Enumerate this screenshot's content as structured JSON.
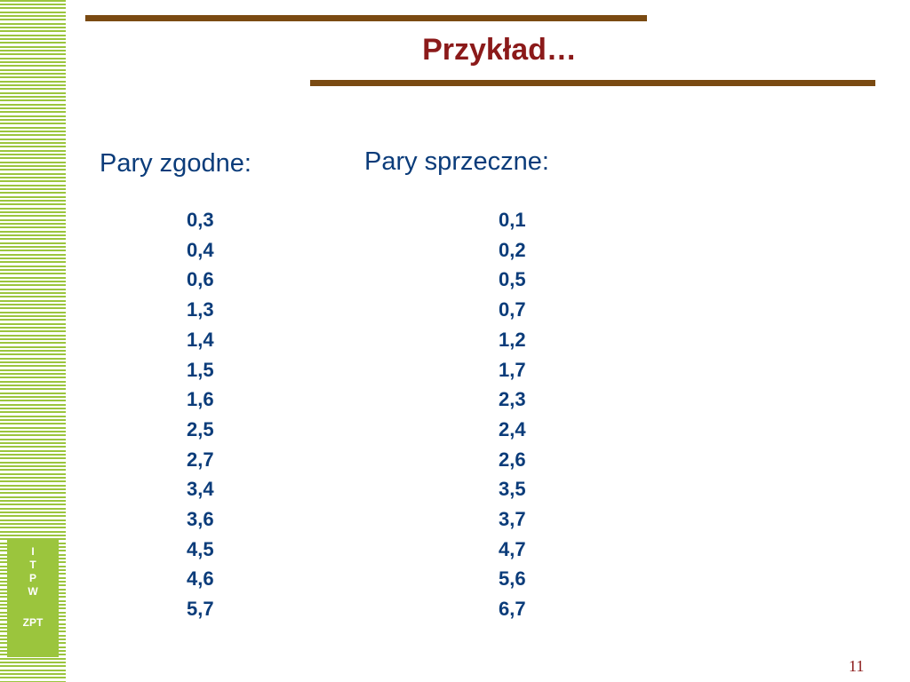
{
  "slide": {
    "title": "Przykład…",
    "page_number": "11"
  },
  "sidebar": {
    "badge_letters": [
      "I",
      "T",
      "P",
      "W"
    ],
    "badge_footer": "ZPT"
  },
  "columns": {
    "left": {
      "heading": "Pary zgodne:",
      "items": [
        "0,3",
        "0,4",
        "0,6",
        "1,3",
        "1,4",
        "1,5",
        "1,6",
        "2,5",
        "2,7",
        "3,4",
        "3,6",
        "4,5",
        "4,6",
        "5,7"
      ]
    },
    "right": {
      "heading": "Pary sprzeczne:",
      "items": [
        "0,1",
        "0,2",
        "0,5",
        "0,7",
        "1,2",
        "1,7",
        "2,3",
        "2,4",
        "2,6",
        "3,5",
        "3,7",
        "4,7",
        "5,6",
        "6,7"
      ]
    }
  },
  "colors": {
    "title": "#8b1a1a",
    "text": "#0b3c7a",
    "rule": "#7a4a12",
    "stripe": "#9bc53d"
  }
}
